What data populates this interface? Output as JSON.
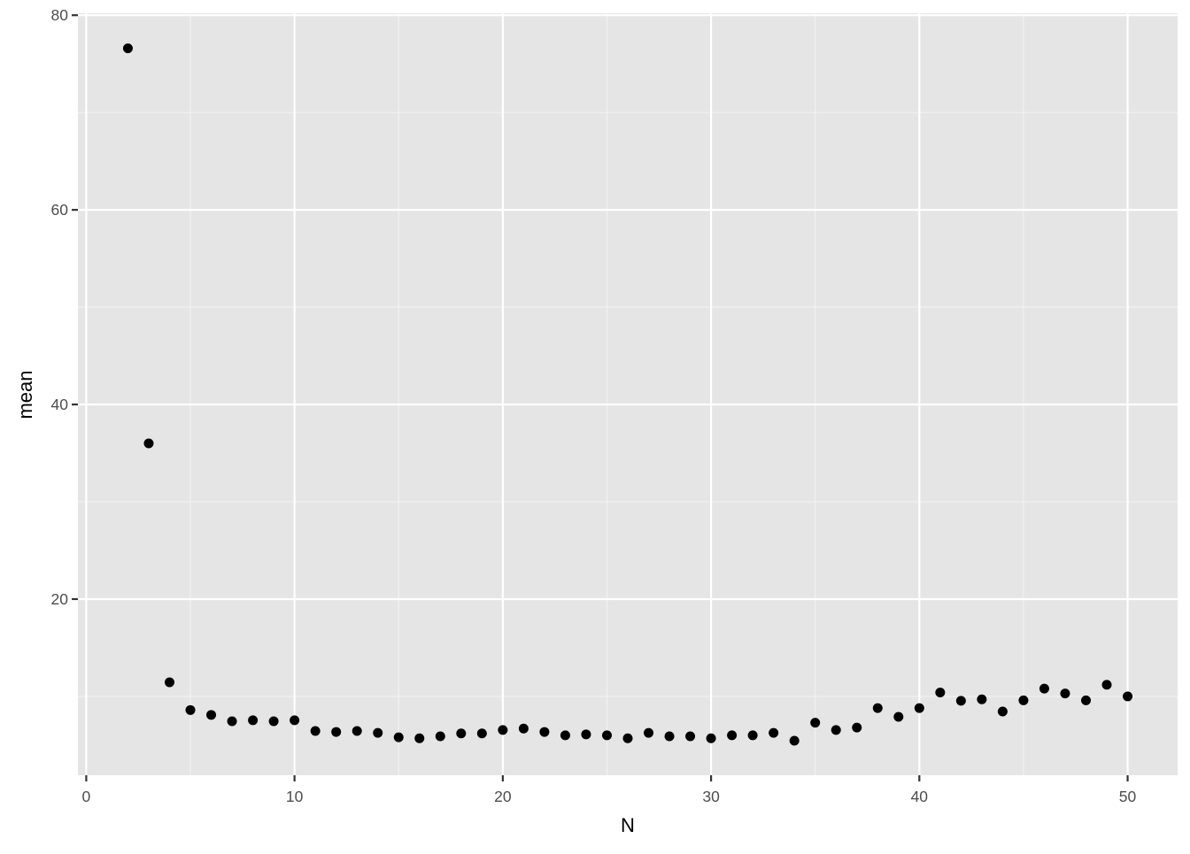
{
  "chart_data": {
    "type": "scatter",
    "title": "",
    "xlabel": "N",
    "ylabel": "mean",
    "xlim": [
      -0.4,
      52.4
    ],
    "ylim": [
      1.9,
      80.2
    ],
    "x_ticks": [
      0,
      10,
      20,
      30,
      40,
      50
    ],
    "y_ticks": [
      20,
      40,
      60,
      80
    ],
    "grid": true,
    "panel_background": "#e5e5e5",
    "point_color": "#000000",
    "points": [
      {
        "x": 2,
        "y": 76.6
      },
      {
        "x": 3,
        "y": 36.0
      },
      {
        "x": 4,
        "y": 11.45
      },
      {
        "x": 5,
        "y": 8.6
      },
      {
        "x": 6,
        "y": 8.1
      },
      {
        "x": 7,
        "y": 7.45
      },
      {
        "x": 8,
        "y": 7.55
      },
      {
        "x": 9,
        "y": 7.45
      },
      {
        "x": 10,
        "y": 7.55
      },
      {
        "x": 11,
        "y": 6.45
      },
      {
        "x": 12,
        "y": 6.35
      },
      {
        "x": 13,
        "y": 6.45
      },
      {
        "x": 14,
        "y": 6.25
      },
      {
        "x": 15,
        "y": 5.8
      },
      {
        "x": 16,
        "y": 5.7
      },
      {
        "x": 17,
        "y": 5.9
      },
      {
        "x": 18,
        "y": 6.2
      },
      {
        "x": 19,
        "y": 6.2
      },
      {
        "x": 20,
        "y": 6.55
      },
      {
        "x": 21,
        "y": 6.7
      },
      {
        "x": 22,
        "y": 6.35
      },
      {
        "x": 23,
        "y": 6.0
      },
      {
        "x": 24,
        "y": 6.1
      },
      {
        "x": 25,
        "y": 6.0
      },
      {
        "x": 26,
        "y": 5.7
      },
      {
        "x": 27,
        "y": 6.25
      },
      {
        "x": 28,
        "y": 5.9
      },
      {
        "x": 29,
        "y": 5.9
      },
      {
        "x": 30,
        "y": 5.7
      },
      {
        "x": 31,
        "y": 6.0
      },
      {
        "x": 32,
        "y": 6.0
      },
      {
        "x": 33,
        "y": 6.25
      },
      {
        "x": 34,
        "y": 5.45
      },
      {
        "x": 35,
        "y": 7.3
      },
      {
        "x": 36,
        "y": 6.55
      },
      {
        "x": 37,
        "y": 6.8
      },
      {
        "x": 38,
        "y": 8.8
      },
      {
        "x": 39,
        "y": 7.9
      },
      {
        "x": 40,
        "y": 8.8
      },
      {
        "x": 41,
        "y": 10.4
      },
      {
        "x": 42,
        "y": 9.55
      },
      {
        "x": 43,
        "y": 9.7
      },
      {
        "x": 44,
        "y": 8.45
      },
      {
        "x": 45,
        "y": 9.6
      },
      {
        "x": 46,
        "y": 10.8
      },
      {
        "x": 47,
        "y": 10.3
      },
      {
        "x": 48,
        "y": 9.6
      },
      {
        "x": 49,
        "y": 11.2
      },
      {
        "x": 50,
        "y": 10.0
      }
    ]
  }
}
